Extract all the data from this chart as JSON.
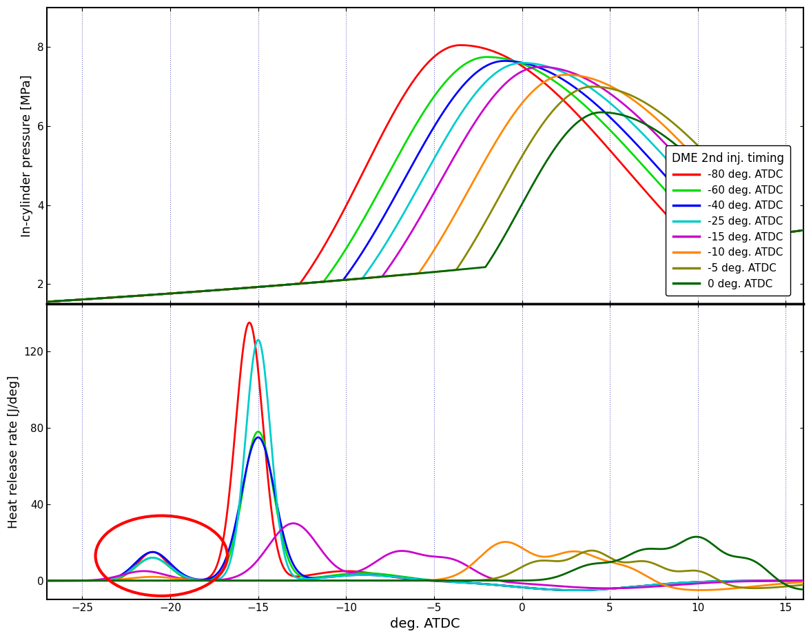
{
  "x_range": [
    -27,
    16
  ],
  "pressure_ylim": [
    1.5,
    9.0
  ],
  "hrr_ylim": [
    -10,
    145
  ],
  "pressure_yticks": [
    2,
    4,
    6,
    8
  ],
  "hrr_yticks": [
    0,
    40,
    80,
    120
  ],
  "xticks": [
    -25,
    -20,
    -15,
    -10,
    -5,
    0,
    5,
    10,
    15
  ],
  "xlabel": "deg. ATDC",
  "ylabel_top": "In-cylinder pressure [MPa]",
  "ylabel_bottom": "Heat release rate [J/deg]",
  "legend_title": "DME 2nd inj. timing",
  "series": [
    {
      "label": "-80 deg. ATDC",
      "color": "#ff0000",
      "lw": 2.0
    },
    {
      "label": "-60 deg. ATDC",
      "color": "#00dd00",
      "lw": 2.0
    },
    {
      "label": "-40 deg. ATDC",
      "color": "#0000ff",
      "lw": 2.0
    },
    {
      "label": "-25 deg. ATDC",
      "color": "#00cccc",
      "lw": 2.0
    },
    {
      "label": "-15 deg. ATDC",
      "color": "#cc00cc",
      "lw": 2.0
    },
    {
      "label": "-10 deg. ATDC",
      "color": "#ff8800",
      "lw": 2.0
    },
    {
      "label": "-5 deg. ATDC",
      "color": "#888800",
      "lw": 2.0
    },
    {
      "label": "0 deg. ATDC",
      "color": "#006600",
      "lw": 2.0
    }
  ],
  "injection_timings": [
    -80,
    -60,
    -40,
    -25,
    -15,
    -10,
    -5,
    0
  ],
  "vline_positions": [
    -25,
    -20,
    -15,
    -10,
    -5,
    0,
    5,
    10,
    15
  ],
  "background_color": "#ffffff"
}
